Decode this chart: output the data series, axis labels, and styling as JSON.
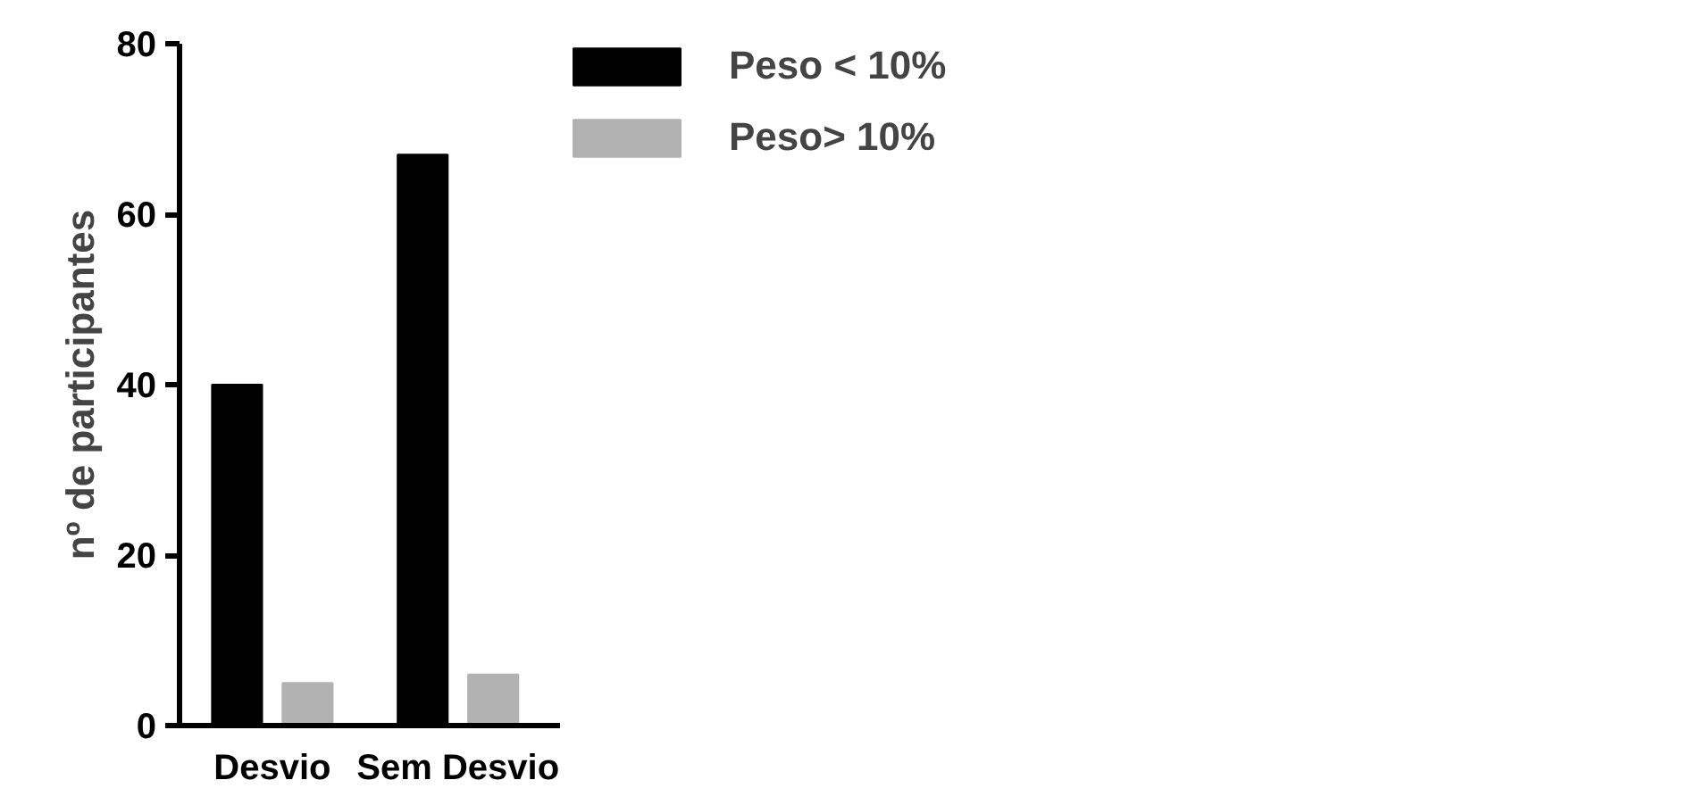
{
  "chart_data": {
    "type": "bar",
    "ylabel": "nº de participantes",
    "categories": [
      "Desvio",
      "Sem Desvio"
    ],
    "series": [
      {
        "name": "Peso < 10%",
        "color": "#000000",
        "values": [
          40,
          67
        ]
      },
      {
        "name": "Peso> 10%",
        "color": "#b2b2b2",
        "values": [
          5,
          6
        ]
      }
    ],
    "ylim": [
      0,
      80
    ],
    "yticks": [
      0,
      20,
      40,
      60,
      80
    ],
    "grid": false,
    "legend": "top right"
  }
}
